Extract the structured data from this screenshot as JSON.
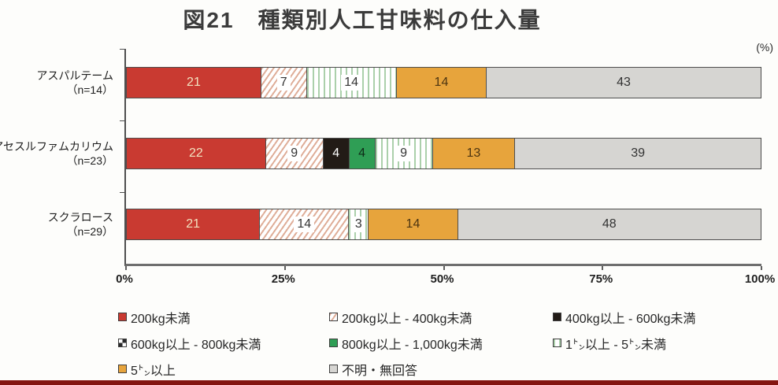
{
  "title": "図21　種類別人工甘味料の仕入量",
  "percent_label": "(%)",
  "x_axis": {
    "ticks": [
      "0%",
      "25%",
      "50%",
      "75%",
      "100%"
    ]
  },
  "chart_data": {
    "type": "bar",
    "stacked": true,
    "orientation": "horizontal",
    "title": "図21　種類別人工甘味料の仕入量",
    "xlabel": "(%)",
    "xlim": [
      0,
      100
    ],
    "grid": false,
    "legend_position": "bottom",
    "categories": [
      "アスパルテーム",
      "アセスルファムカリウム",
      "スクラロース"
    ],
    "category_sublabels": [
      "（n=14）",
      "（n=23）",
      "（n=29）"
    ],
    "series": [
      {
        "name": "200kg未満",
        "fill": "red",
        "label_color": "#f2e2c0",
        "values": [
          21,
          22,
          21
        ]
      },
      {
        "name": "200kg以上 - 400kg未満",
        "fill": "hatch",
        "label_color": "#333333",
        "values": [
          7,
          9,
          14
        ]
      },
      {
        "name": "400kg以上 - 600kg未満",
        "fill": "black",
        "label_color": "#ffffff",
        "values": [
          0,
          4,
          0
        ]
      },
      {
        "name": "600kg以上 - 800kg未満",
        "fill": "checker",
        "label_color": "#333333",
        "values": [
          0,
          0,
          0
        ]
      },
      {
        "name": "800kg以上 - 1,000kg未満",
        "fill": "green",
        "label_color": "#0f2d18",
        "values": [
          0,
          4,
          0
        ]
      },
      {
        "name": "1㌧以上 - 5㌧未満",
        "fill": "stripes",
        "label_color": "#333333",
        "values": [
          14,
          9,
          3
        ]
      },
      {
        "name": "5㌧以上",
        "fill": "orange",
        "label_color": "#4d3511",
        "values": [
          14,
          13,
          14
        ]
      },
      {
        "name": "不明・無回答",
        "fill": "gray",
        "label_color": "#333333",
        "values": [
          43,
          39,
          48
        ]
      }
    ]
  },
  "legend": {
    "items": [
      {
        "label": "200kg未満",
        "fill": "red"
      },
      {
        "label": "200kg以上 - 400kg未満",
        "fill": "hatch"
      },
      {
        "label": "400kg以上 - 600kg未満",
        "fill": "black"
      },
      {
        "label": "600kg以上 - 800kg未満",
        "fill": "checker"
      },
      {
        "label": "800kg以上 - 1,000kg未満",
        "fill": "green"
      },
      {
        "label": "1㌧以上 - 5㌧未満",
        "fill": "stripes"
      },
      {
        "label": "5㌧以上",
        "fill": "orange"
      },
      {
        "label": "不明・無回答",
        "fill": "gray"
      }
    ]
  },
  "colors": {
    "red": "#c93a31",
    "hatch_salmon": "#dfae99",
    "black": "#221b16",
    "checker_dark": "#2a2a2a",
    "green": "#2f9e55",
    "stripe_green": "#abd0ab",
    "orange": "#e7a43c",
    "gray": "#d6d5d2",
    "axis": "#4f4f4f",
    "bottom_bar": "#841511",
    "title_text": "#3b3b3b"
  }
}
